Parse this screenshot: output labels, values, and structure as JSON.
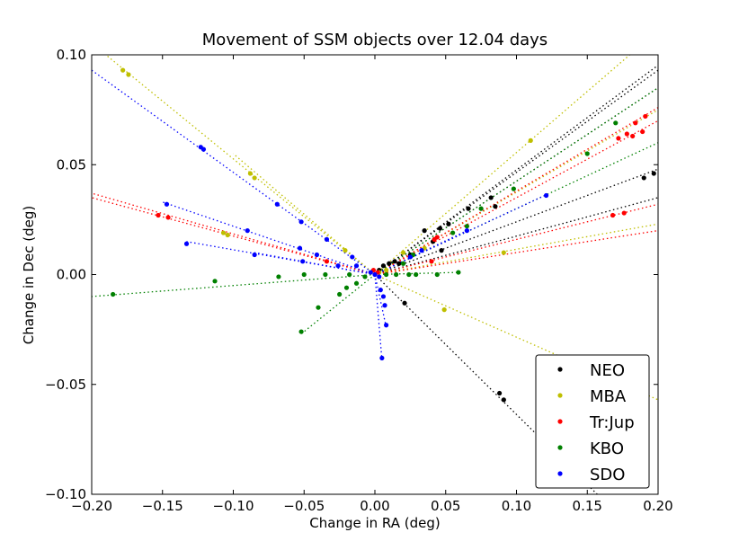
{
  "chart_data": {
    "type": "scatter",
    "title": "Movement of SSM objects over 12.04 days",
    "xlabel": "Change in RA (deg)",
    "ylabel": "Change in Dec (deg)",
    "xlim": [
      -0.2,
      0.2
    ],
    "ylim": [
      -0.1,
      0.1
    ],
    "xticks": [
      -0.2,
      -0.15,
      -0.1,
      -0.05,
      0.0,
      0.05,
      0.1,
      0.15,
      0.2
    ],
    "xtick_labels": [
      "−0.20",
      "−0.15",
      "−0.10",
      "−0.05",
      "0.00",
      "0.05",
      "0.10",
      "0.15",
      "0.20"
    ],
    "yticks": [
      -0.1,
      -0.05,
      0.0,
      0.05,
      0.1
    ],
    "ytick_labels": [
      "−0.10",
      "−0.05",
      "0.00",
      "0.05",
      "0.10"
    ],
    "grid": false,
    "legend_position": "lower-right",
    "series": [
      {
        "name": "NEO",
        "color": "#000000",
        "lines": [
          [
            [
              0,
              0
            ],
            [
              0.21,
              0.1
            ]
          ],
          [
            [
              0,
              0
            ],
            [
              0.2,
              0.093
            ]
          ],
          [
            [
              0,
              0
            ],
            [
              0.2,
              0.085
            ]
          ],
          [
            [
              0,
              0
            ],
            [
              0.2,
              0.048
            ]
          ],
          [
            [
              0,
              0
            ],
            [
              0.157,
              -0.1
            ]
          ],
          [
            [
              0,
              0
            ],
            [
              0.2,
              0.035
            ]
          ]
        ],
        "points": [
          [
            0.003,
            0.002
          ],
          [
            0.006,
            0.004
          ],
          [
            0.01,
            0.005
          ],
          [
            0.014,
            0.006
          ],
          [
            0.017,
            0.005
          ],
          [
            0.025,
            0.009
          ],
          [
            0.021,
            -0.013
          ],
          [
            0.035,
            0.02
          ],
          [
            0.041,
            0.015
          ],
          [
            0.046,
            0.021
          ],
          [
            0.047,
            0.011
          ],
          [
            0.052,
            0.023
          ],
          [
            0.066,
            0.03
          ],
          [
            0.082,
            0.035
          ],
          [
            0.085,
            0.031
          ],
          [
            0.088,
            -0.054
          ],
          [
            0.091,
            -0.057
          ],
          [
            0.19,
            0.044
          ],
          [
            0.197,
            0.046
          ]
        ]
      },
      {
        "name": "MBA",
        "color": "#bfbf00",
        "lines": [
          [
            [
              0,
              0
            ],
            [
              -0.19,
              0.1
            ]
          ],
          [
            [
              0,
              0
            ],
            [
              -0.1,
              0.055
            ]
          ],
          [
            [
              0,
              0
            ],
            [
              0.18,
              0.1
            ]
          ],
          [
            [
              0,
              0
            ],
            [
              0.2,
              0.075
            ]
          ],
          [
            [
              0,
              0
            ],
            [
              0.2,
              0.023
            ]
          ],
          [
            [
              0,
              0
            ],
            [
              0.2,
              -0.057
            ]
          ]
        ],
        "points": [
          [
            -0.178,
            0.093
          ],
          [
            -0.174,
            0.091
          ],
          [
            -0.088,
            0.046
          ],
          [
            -0.085,
            0.044
          ],
          [
            -0.107,
            0.019
          ],
          [
            -0.104,
            0.018
          ],
          [
            -0.021,
            0.011
          ],
          [
            -0.003,
            0.001
          ],
          [
            0.003,
            0.001
          ],
          [
            0.008,
            0.002
          ],
          [
            0.02,
            0.01
          ],
          [
            0.035,
            0.012
          ],
          [
            0.049,
            -0.016
          ],
          [
            0.091,
            0.01
          ],
          [
            0.11,
            0.061
          ]
        ]
      },
      {
        "name": "Tr:Jup",
        "color": "#ff0000",
        "lines": [
          [
            [
              0,
              0
            ],
            [
              -0.2,
              0.035
            ]
          ],
          [
            [
              0,
              0
            ],
            [
              -0.2,
              0.037
            ]
          ],
          [
            [
              0,
              0
            ],
            [
              0.2,
              0.076
            ]
          ],
          [
            [
              0,
              0
            ],
            [
              0.2,
              0.07
            ]
          ],
          [
            [
              0,
              0
            ],
            [
              0.2,
              0.032
            ]
          ],
          [
            [
              0,
              0
            ],
            [
              0.2,
              0.02
            ]
          ]
        ],
        "points": [
          [
            -0.153,
            0.027
          ],
          [
            -0.146,
            0.026
          ],
          [
            -0.034,
            0.006
          ],
          [
            -0.001,
            0.002
          ],
          [
            0.002,
            0.001
          ],
          [
            0.042,
            0.016
          ],
          [
            0.044,
            0.017
          ],
          [
            0.04,
            0.006
          ],
          [
            0.168,
            0.027
          ],
          [
            0.176,
            0.028
          ],
          [
            0.172,
            0.062
          ],
          [
            0.178,
            0.064
          ],
          [
            0.182,
            0.063
          ],
          [
            0.184,
            0.069
          ],
          [
            0.189,
            0.065
          ],
          [
            0.191,
            0.072
          ]
        ]
      },
      {
        "name": "KBO",
        "color": "#008000",
        "lines": [
          [
            [
              0,
              0
            ],
            [
              -0.2,
              -0.01
            ]
          ],
          [
            [
              0,
              0
            ],
            [
              -0.052,
              -0.027
            ]
          ],
          [
            [
              0,
              0
            ],
            [
              0.2,
              0.085
            ]
          ],
          [
            [
              0,
              0
            ],
            [
              0.2,
              0.06
            ]
          ],
          [
            [
              0,
              0
            ],
            [
              0.06,
              0.001
            ]
          ]
        ],
        "points": [
          [
            -0.185,
            -0.009
          ],
          [
            -0.113,
            -0.003
          ],
          [
            -0.068,
            -0.001
          ],
          [
            -0.05,
            0.0
          ],
          [
            -0.035,
            0.0
          ],
          [
            -0.018,
            0.0
          ],
          [
            -0.04,
            -0.015
          ],
          [
            -0.052,
            -0.026
          ],
          [
            -0.025,
            -0.009
          ],
          [
            -0.02,
            -0.006
          ],
          [
            -0.013,
            -0.004
          ],
          [
            -0.007,
            -0.001
          ],
          [
            0.008,
            0.0
          ],
          [
            0.015,
            0.0
          ],
          [
            0.024,
            0.0
          ],
          [
            0.029,
            0.0
          ],
          [
            0.044,
            0.0
          ],
          [
            0.059,
            0.001
          ],
          [
            0.055,
            0.019
          ],
          [
            0.065,
            0.022
          ],
          [
            0.075,
            0.03
          ],
          [
            0.098,
            0.039
          ],
          [
            0.15,
            0.055
          ],
          [
            0.17,
            0.069
          ],
          [
            0.027,
            0.009
          ],
          [
            0.02,
            0.005
          ]
        ]
      },
      {
        "name": "SDO",
        "color": "#0000ff",
        "lines": [
          [
            [
              0,
              0
            ],
            [
              -0.2,
              0.093
            ]
          ],
          [
            [
              0,
              0
            ],
            [
              -0.15,
              0.033
            ]
          ],
          [
            [
              0,
              0
            ],
            [
              -0.133,
              0.015
            ]
          ],
          [
            [
              0,
              0
            ],
            [
              -0.085,
              0.01
            ]
          ],
          [
            [
              0,
              0
            ],
            [
              0.008,
              -0.024
            ]
          ],
          [
            [
              0,
              0
            ],
            [
              0.005,
              -0.039
            ]
          ],
          [
            [
              0,
              0
            ],
            [
              0.12,
              0.036
            ]
          ],
          [
            [
              0,
              0
            ],
            [
              0.065,
              0.02
            ]
          ]
        ],
        "points": [
          [
            -0.123,
            0.058
          ],
          [
            -0.121,
            0.057
          ],
          [
            -0.069,
            0.032
          ],
          [
            -0.052,
            0.024
          ],
          [
            -0.147,
            0.032
          ],
          [
            -0.133,
            0.014
          ],
          [
            -0.09,
            0.02
          ],
          [
            -0.085,
            0.009
          ],
          [
            -0.053,
            0.012
          ],
          [
            -0.051,
            0.006
          ],
          [
            -0.041,
            0.009
          ],
          [
            -0.034,
            0.016
          ],
          [
            -0.026,
            0.004
          ],
          [
            -0.016,
            0.008
          ],
          [
            -0.013,
            0.004
          ],
          [
            -0.003,
            0.001
          ],
          [
            0.0,
            0.0
          ],
          [
            0.003,
            -0.001
          ],
          [
            0.004,
            -0.007
          ],
          [
            0.006,
            -0.01
          ],
          [
            0.007,
            -0.014
          ],
          [
            0.008,
            -0.023
          ],
          [
            0.005,
            -0.038
          ],
          [
            0.025,
            0.008
          ],
          [
            0.033,
            0.011
          ],
          [
            0.065,
            0.02
          ],
          [
            0.121,
            0.036
          ]
        ]
      }
    ]
  }
}
